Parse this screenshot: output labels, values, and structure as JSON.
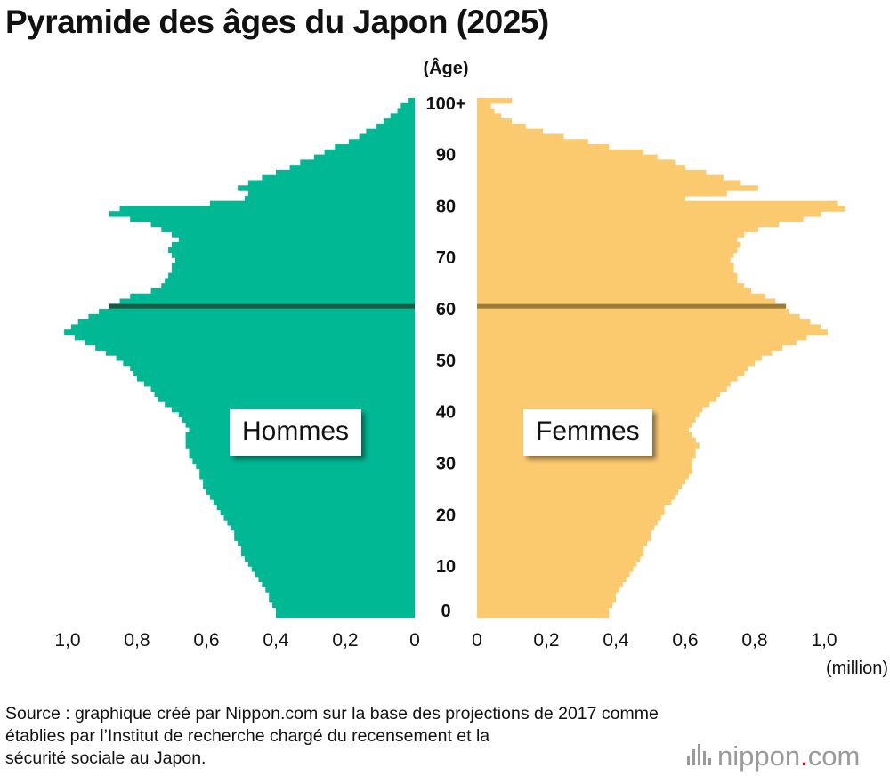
{
  "title": "Pyramide des âges du Japon (2025)",
  "source_lines": [
    "Source : graphique créé par Nippon.com sur la base des projections de 2017 comme",
    "établies par l’Institut de recherche chargé du recensement et la",
    "sécurité sociale au Japon."
  ],
  "logo": {
    "name": "nippon",
    "dot": ".",
    "suffix": "com"
  },
  "colors": {
    "men": "#00b894",
    "women": "#fbc96e",
    "men_marker": "#1a5a45",
    "women_marker": "#9c7a3a"
  },
  "chart_data": {
    "type": "bar",
    "orientation": "horizontal-population-pyramid",
    "title": "Pyramide des âges du Japon (2025)",
    "y_axis_label": "(Âge)",
    "x_axis_label": "(million)",
    "age_ticks": [
      "0",
      "10",
      "20",
      "30",
      "40",
      "50",
      "60",
      "70",
      "80",
      "90",
      "100+"
    ],
    "x_tick_labels_left": [
      "1,0",
      "0,8",
      "0,6",
      "0,4",
      "0,2",
      "0"
    ],
    "x_tick_labels_right": [
      "0",
      "0,2",
      "0,4",
      "0,6",
      "0,8",
      "1,0"
    ],
    "xlim": [
      0,
      1.0
    ],
    "highlight_age": 60,
    "series": [
      {
        "name": "Hommes",
        "values": [
          0.4,
          0.4,
          0.41,
          0.42,
          0.42,
          0.43,
          0.44,
          0.45,
          0.46,
          0.47,
          0.48,
          0.49,
          0.5,
          0.5,
          0.51,
          0.52,
          0.52,
          0.53,
          0.54,
          0.55,
          0.56,
          0.57,
          0.58,
          0.59,
          0.6,
          0.61,
          0.61,
          0.62,
          0.62,
          0.63,
          0.64,
          0.65,
          0.65,
          0.66,
          0.66,
          0.66,
          0.65,
          0.66,
          0.67,
          0.68,
          0.7,
          0.72,
          0.74,
          0.75,
          0.76,
          0.78,
          0.8,
          0.81,
          0.82,
          0.84,
          0.86,
          0.89,
          0.92,
          0.95,
          0.98,
          1.01,
          0.99,
          0.97,
          0.94,
          0.91,
          0.88,
          0.85,
          0.82,
          0.76,
          0.73,
          0.72,
          0.71,
          0.7,
          0.7,
          0.69,
          0.7,
          0.71,
          0.7,
          0.68,
          0.7,
          0.73,
          0.76,
          0.82,
          0.88,
          0.85,
          0.59,
          0.49,
          0.48,
          0.51,
          0.48,
          0.44,
          0.4,
          0.36,
          0.33,
          0.29,
          0.26,
          0.23,
          0.19,
          0.16,
          0.14,
          0.11,
          0.09,
          0.07,
          0.05,
          0.04,
          0.02
        ]
      },
      {
        "name": "Femmes",
        "values": [
          0.38,
          0.38,
          0.39,
          0.4,
          0.4,
          0.41,
          0.42,
          0.43,
          0.44,
          0.45,
          0.46,
          0.47,
          0.48,
          0.48,
          0.49,
          0.5,
          0.5,
          0.51,
          0.52,
          0.53,
          0.54,
          0.54,
          0.56,
          0.57,
          0.58,
          0.59,
          0.6,
          0.61,
          0.62,
          0.62,
          0.62,
          0.63,
          0.63,
          0.64,
          0.63,
          0.62,
          0.61,
          0.62,
          0.63,
          0.64,
          0.65,
          0.67,
          0.69,
          0.7,
          0.72,
          0.73,
          0.75,
          0.77,
          0.78,
          0.8,
          0.82,
          0.85,
          0.88,
          0.92,
          0.95,
          1.01,
          0.99,
          0.96,
          0.93,
          0.9,
          0.89,
          0.86,
          0.83,
          0.79,
          0.77,
          0.75,
          0.75,
          0.74,
          0.74,
          0.73,
          0.74,
          0.75,
          0.76,
          0.75,
          0.77,
          0.81,
          0.87,
          0.94,
          0.99,
          1.06,
          1.04,
          0.6,
          0.72,
          0.81,
          0.76,
          0.71,
          0.66,
          0.6,
          0.57,
          0.52,
          0.48,
          0.38,
          0.32,
          0.25,
          0.19,
          0.14,
          0.1,
          0.07,
          0.05,
          0.04,
          0.1
        ]
      }
    ]
  },
  "labels": {
    "men": "Hommes",
    "women": "Femmes"
  }
}
